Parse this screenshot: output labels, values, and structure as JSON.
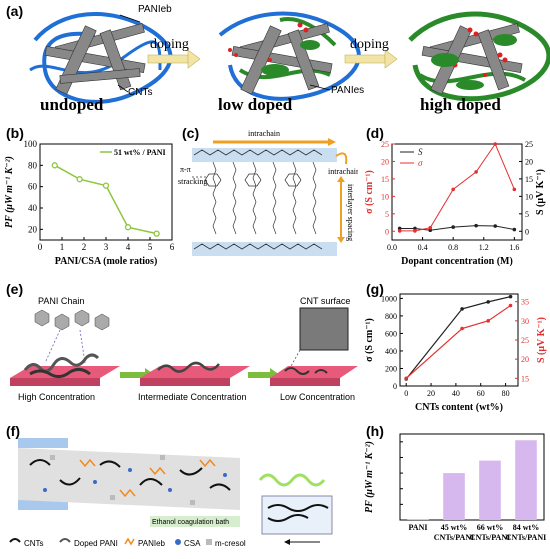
{
  "panel_a": {
    "label": "(a)",
    "stages": [
      "undoped",
      "low doped",
      "high doped"
    ],
    "arrows": [
      "doping",
      "doping"
    ],
    "annotations": {
      "paniEB": "PANIeb",
      "cnts": "CNTs",
      "paniES": "PANIes"
    },
    "colors": {
      "paniEB": "#1f6fd6",
      "paniES": "#2a8a2a",
      "dopant": "#e02020"
    }
  },
  "panel_b": {
    "label": "(b)",
    "chart_data": {
      "type": "line",
      "title": "",
      "xlabel": "PANI/CSA (mole ratios)",
      "ylabel": "PF (μW m⁻¹ K⁻²)",
      "xlim": [
        0,
        6
      ],
      "ylim": [
        10,
        100
      ],
      "xticks": [
        "0",
        "1",
        "2",
        "3",
        "4",
        "5",
        "6"
      ],
      "yticks": [
        "20",
        "40",
        "60",
        "80",
        "100"
      ],
      "legend": "top-right",
      "series": [
        {
          "name": "51 wt% / PANI",
          "color": "#8dc63f",
          "x": [
            0.67,
            1.8,
            3.0,
            4.0,
            5.3
          ],
          "y": [
            80,
            67,
            61,
            22,
            16
          ]
        }
      ]
    }
  },
  "panel_c": {
    "label": "(c)",
    "texts": {
      "intrachain_top": "intrachain",
      "intrachain_right": "intrachain",
      "pi": "π-π",
      "stacking": "stracking",
      "interlayer": "interlayer spacing"
    }
  },
  "panel_d": {
    "label": "(d)",
    "chart_data": {
      "type": "line",
      "title": "",
      "xlabel": "Dopant concentration (M)",
      "ylabel_left": "σ (S cm⁻¹)",
      "ylabel_right": "S (μV K⁻¹)",
      "xlim": [
        0,
        1.7
      ],
      "ylim_left": [
        -2.5,
        25
      ],
      "ylim_right": [
        -2.5,
        25
      ],
      "xticks": [
        "0.0",
        "0.4",
        "0.8",
        "1.2",
        "1.6"
      ],
      "yticks_left": [
        "0",
        "5",
        "10",
        "15",
        "20",
        "25"
      ],
      "yticks_right": [
        "0",
        "5",
        "10",
        "15",
        "20",
        "25"
      ],
      "legend": "top-left",
      "series": [
        {
          "name": "S",
          "color": "#222222",
          "x": [
            0.1,
            0.3,
            0.5,
            0.8,
            1.1,
            1.35,
            1.6
          ],
          "y": [
            0.8,
            0.8,
            0.3,
            1.2,
            1.6,
            1.5,
            0.5
          ]
        },
        {
          "name": "σ",
          "color": "#e53030",
          "x": [
            0.1,
            0.3,
            0.5,
            0.8,
            1.1,
            1.35,
            1.6
          ],
          "y": [
            0.1,
            0.1,
            1.0,
            12,
            17,
            25,
            12
          ]
        }
      ]
    }
  },
  "panel_e": {
    "label": "(e)",
    "texts": {
      "chain": "PANI Chain",
      "surface": "CNT surface",
      "high": "High Concentration",
      "intermediate": "Intermediate Concentration",
      "low": "Low Concentration"
    }
  },
  "panel_g": {
    "label": "(g)",
    "chart_data": {
      "type": "line",
      "title": "",
      "xlabel": "CNTs content (wt%)",
      "ylabel_left": "σ (S cm⁻¹)",
      "ylabel_right": "S (μV K⁻¹)",
      "xlim": [
        -5,
        90
      ],
      "ylim_left": [
        0,
        1050
      ],
      "ylim_right": [
        13,
        37
      ],
      "xticks": [
        "0",
        "20",
        "40",
        "60",
        "80"
      ],
      "yticks_left": [
        "0",
        "200",
        "400",
        "600",
        "800",
        "1000"
      ],
      "yticks_right": [
        "15",
        "20",
        "25",
        "30",
        "35"
      ],
      "series": [
        {
          "name": "σ",
          "color": "#222222",
          "x": [
            0,
            45,
            66,
            84
          ],
          "y": [
            80,
            880,
            960,
            1020
          ]
        },
        {
          "name": "S",
          "color": "#e53030",
          "x": [
            0,
            45,
            66,
            84
          ],
          "y": [
            15,
            28,
            30,
            34
          ]
        }
      ]
    }
  },
  "panel_f": {
    "label": "(f)",
    "texts": {
      "bath": "Ethanol coagulation bath"
    },
    "legend": [
      "CNTs",
      "Doped PANI",
      "PANIeb",
      "CSA",
      "m-cresol"
    ]
  },
  "panel_h": {
    "label": "(h)",
    "chart_data": {
      "type": "bar",
      "title": "",
      "xlabel": "",
      "ylabel": "PF (μW m⁻¹ K⁻²)",
      "ylim": [
        0,
        110
      ],
      "yticks": [
        "0",
        "20",
        "40",
        "60",
        "80",
        "100"
      ],
      "categories": [
        "PANI",
        "45 wt% CNTs/PANI",
        "66 wt% CNTs/PANI",
        "84 wt% CNTs/PANI"
      ],
      "category_lines": [
        [
          "PANI"
        ],
        [
          "45 wt%",
          "CNTs/PANI"
        ],
        [
          "66 wt%",
          "CNTs/PANI"
        ],
        [
          "84 wt%",
          "CNTs/PANI"
        ]
      ],
      "values": [
        0.5,
        60,
        76,
        102
      ],
      "color": "#d6b8ee"
    }
  }
}
